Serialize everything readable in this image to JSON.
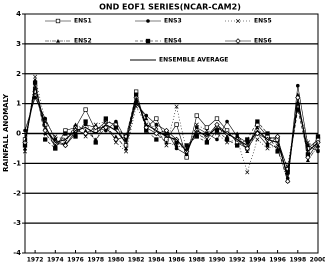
{
  "chart_data": {
    "type": "line",
    "title": "OND EOF1 SERIES(NCAR-CAM2)",
    "y_label": "RAINFALL ANOMALY",
    "x": [
      1971,
      1972,
      1973,
      1974,
      1975,
      1976,
      1977,
      1978,
      1979,
      1980,
      1981,
      1982,
      1983,
      1984,
      1985,
      1986,
      1987,
      1988,
      1989,
      1990,
      1991,
      1992,
      1993,
      1994,
      1995,
      1996,
      1997,
      1998,
      1999,
      2000
    ],
    "xlim": [
      1971,
      2000
    ],
    "xticks": [
      1972,
      1974,
      1976,
      1978,
      1980,
      1982,
      1984,
      1986,
      1988,
      1990,
      1992,
      1994,
      1996,
      1998,
      2000
    ],
    "ylim": [
      -4,
      4
    ],
    "yticks": [
      -4,
      -3,
      -2,
      -1,
      0,
      1,
      2,
      3,
      4
    ],
    "grid": true,
    "series": [
      {
        "name": "ENS1",
        "color": "#000000",
        "marker": "square-open",
        "dash": "none",
        "values": [
          -0.2,
          1.5,
          0.3,
          -0.5,
          0.1,
          0.2,
          0.8,
          0.1,
          0.4,
          0.3,
          -0.4,
          1.4,
          0.2,
          0.5,
          -0.2,
          0.3,
          -0.8,
          0.6,
          0.2,
          0.5,
          0.1,
          -0.3,
          -0.5,
          0.3,
          -0.1,
          -0.2,
          -1.2,
          0.9,
          -0.5,
          -0.2
        ]
      },
      {
        "name": "ENS2",
        "color": "#000000",
        "marker": "triangle",
        "dash": "4 1 1 1",
        "values": [
          -0.5,
          1.8,
          0.0,
          -0.4,
          -0.3,
          0.3,
          0.1,
          -0.2,
          0.2,
          -0.1,
          -0.5,
          1.1,
          0.5,
          0.0,
          -0.3,
          -0.4,
          -0.5,
          0.0,
          -0.2,
          0.3,
          -0.1,
          0.0,
          -0.6,
          0.2,
          -0.3,
          -0.5,
          -1.6,
          1.3,
          -0.9,
          -0.4
        ]
      },
      {
        "name": "ENS3",
        "color": "#000000",
        "marker": "circle",
        "dash": "none",
        "values": [
          0.1,
          1.2,
          0.5,
          -0.2,
          -0.4,
          0.0,
          0.3,
          0.2,
          0.1,
          0.4,
          -0.2,
          1.0,
          0.6,
          0.3,
          0.1,
          -0.5,
          -0.7,
          0.2,
          0.0,
          -0.2,
          0.4,
          -0.1,
          -0.3,
          0.0,
          -0.4,
          -0.1,
          -1.5,
          1.6,
          -0.4,
          -0.6
        ]
      },
      {
        "name": "ENS4",
        "color": "#000000",
        "marker": "square",
        "dash": "3 2",
        "values": [
          -0.4,
          1.7,
          -0.2,
          -0.5,
          0.0,
          -0.1,
          0.4,
          -0.3,
          0.5,
          0.2,
          -0.1,
          1.3,
          0.1,
          -0.2,
          0.0,
          -0.3,
          -0.4,
          -0.1,
          -0.3,
          0.1,
          -0.2,
          -0.4,
          -0.2,
          0.4,
          0.0,
          -0.6,
          -1.3,
          0.8,
          -0.7,
          -0.1
        ]
      },
      {
        "name": "ENS5",
        "color": "#000000",
        "marker": "cross",
        "dash": "1 2",
        "values": [
          -0.6,
          1.9,
          0.4,
          -0.1,
          -0.2,
          0.2,
          -0.1,
          0.3,
          0.4,
          -0.3,
          -0.6,
          0.9,
          0.3,
          0.2,
          -0.4,
          0.9,
          -0.6,
          0.3,
          0.1,
          0.0,
          -0.3,
          -0.2,
          -1.3,
          -0.2,
          -0.5,
          -0.4,
          -1.1,
          1.0,
          -0.3,
          -0.5
        ]
      },
      {
        "name": "ENS6",
        "color": "#000000",
        "marker": "diamond-open",
        "dash": "none",
        "values": [
          -0.3,
          1.4,
          0.1,
          -0.3,
          -0.4,
          0.1,
          0.0,
          0.2,
          0.2,
          -0.2,
          -0.1,
          1.2,
          0.2,
          0.0,
          0.1,
          -0.2,
          -0.6,
          0.1,
          -0.1,
          0.3,
          0.0,
          -0.2,
          -0.5,
          0.0,
          -0.2,
          -0.1,
          -1.6,
          1.2,
          -0.8,
          -0.3
        ]
      },
      {
        "name": "ENSEMBLE AVERAGE",
        "color": "#000000",
        "marker": "none",
        "dash": "none",
        "values": [
          -0.3,
          1.6,
          0.2,
          -0.3,
          -0.2,
          0.1,
          0.2,
          0.0,
          0.3,
          0.1,
          -0.3,
          1.2,
          0.3,
          0.1,
          -0.1,
          -0.2,
          -0.6,
          0.1,
          -0.1,
          0.2,
          0.0,
          -0.2,
          -0.4,
          0.1,
          -0.2,
          -0.3,
          -1.4,
          1.1,
          -0.6,
          -0.3
        ]
      }
    ]
  }
}
